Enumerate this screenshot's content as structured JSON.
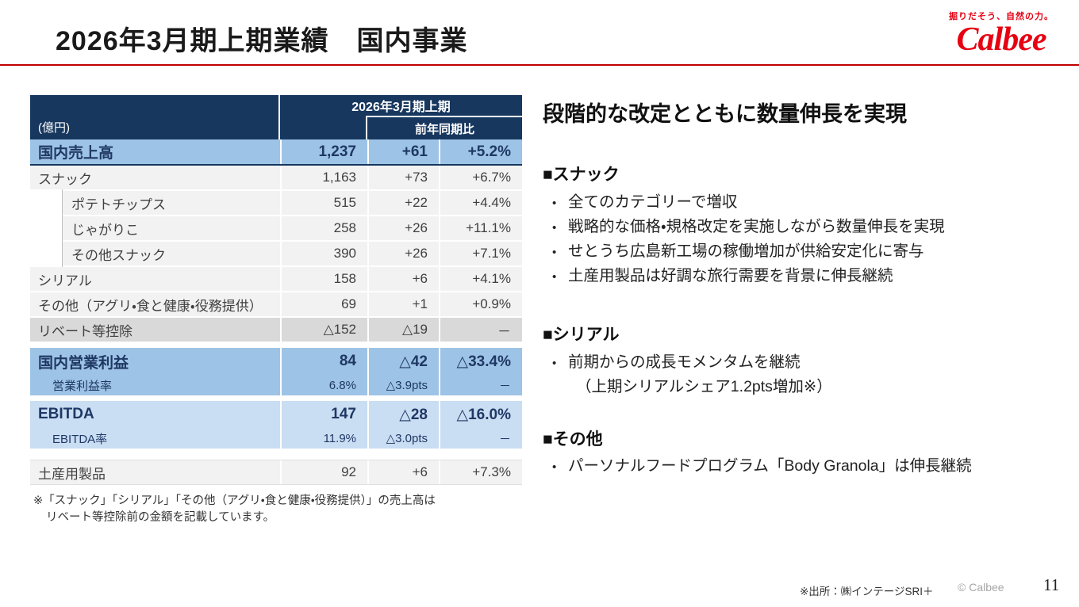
{
  "slide": {
    "title": "2026年3月期上期業績　国内事業"
  },
  "logo": {
    "tagline": "掘りだそう、自然の力。",
    "brand": "Calbee"
  },
  "table": {
    "unit_label": "(億円)",
    "period_header": "2026年3月期上期",
    "yoy_header": "前年同期比",
    "rows": [
      {
        "label": "国内売上高",
        "value": "1,237",
        "diff": "+61",
        "pct": "+5.2%"
      },
      {
        "label": "スナック",
        "value": "1,163",
        "diff": "+73",
        "pct": "+6.7%"
      },
      {
        "label": "ポテトチップス",
        "value": "515",
        "diff": "+22",
        "pct": "+4.4%"
      },
      {
        "label": "じゃがりこ",
        "value": "258",
        "diff": "+26",
        "pct": "+11.1%"
      },
      {
        "label": "その他スナック",
        "value": "390",
        "diff": "+26",
        "pct": "+7.1%"
      },
      {
        "label": "シリアル",
        "value": "158",
        "diff": "+6",
        "pct": "+4.1%"
      },
      {
        "label": "その他（アグリ・食と健康・役務提供）",
        "value": "69",
        "diff": "+1",
        "pct": "+0.9%"
      },
      {
        "label": "リベート等控除",
        "value": "△152",
        "diff": "△19",
        "pct": "－"
      }
    ],
    "operating_profit": {
      "label": "国内営業利益",
      "value": "84",
      "diff": "△42",
      "pct": "△33.4%",
      "sub_label": "営業利益率",
      "sub_value": "6.8%",
      "sub_diff": "△3.9pts",
      "sub_pct": "－"
    },
    "ebitda": {
      "label": "EBITDA",
      "value": "147",
      "diff": "△28",
      "pct": "△16.0%",
      "sub_label": "EBITDA率",
      "sub_value": "11.9%",
      "sub_diff": "△3.0pts",
      "sub_pct": "－"
    },
    "souvenir": {
      "label": "土産用製品",
      "value": "92",
      "diff": "+6",
      "pct": "+7.3%"
    },
    "footnote_line1": "※「スナック」「シリアル」「その他（アグリ・食と健康・役務提供）」の売上高は",
    "footnote_line2": "リベート等控除前の金額を記載しています。"
  },
  "right_panel": {
    "headline": "段階的な改定とともに数量伸長を実現",
    "sections": [
      {
        "title": "■スナック",
        "bullets": [
          "全てのカテゴリーで増収",
          "戦略的な価格・規格改定を実施しながら数量伸長を実現",
          "せとうち広島新工場の稼働増加が供給安定化に寄与",
          "土産用製品は好調な旅行需要を背景に伸長継続"
        ]
      },
      {
        "title": "■シリアル",
        "bullets": [
          "前期からの成長モメンタムを継続"
        ],
        "continuation": "（上期シリアルシェア1.2pts増加※）"
      },
      {
        "title": "■その他",
        "bullets": [
          "パーソナルフードプログラム「Body Granola」は伸長継続"
        ]
      }
    ]
  },
  "footer": {
    "source_note": "※出所：㈱インテージSRI＋",
    "copyright": "© Calbee",
    "page_number": "11"
  },
  "colors": {
    "accent_red": "#C00000",
    "brand_red": "#E60012",
    "header_navy": "#17375E",
    "text_navy": "#1F3864",
    "highlight_blue": "#9DC3E6",
    "light_blue": "#C9DDF3",
    "deduction_gray": "#D9D9D9",
    "body_gray": "#F2F2F2"
  }
}
